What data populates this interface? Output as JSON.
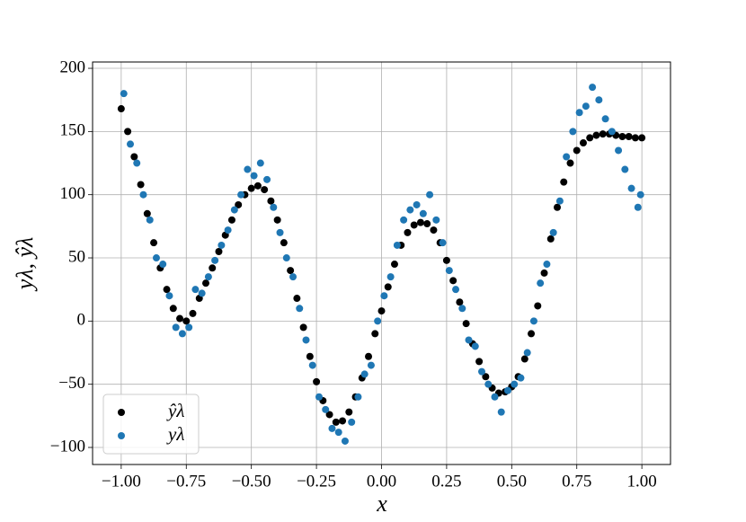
{
  "chart_data": {
    "type": "scatter",
    "x_label": "x",
    "y_label": "yλ, ŷλ",
    "xlim": [
      -1.11,
      1.11
    ],
    "ylim": [
      -113.5,
      205
    ],
    "xticks": [
      {
        "value": -1,
        "label": "−1.00"
      },
      {
        "value": -0.75,
        "label": "−0.75"
      },
      {
        "value": -0.5,
        "label": "−0.50"
      },
      {
        "value": -0.25,
        "label": "−0.25"
      },
      {
        "value": 0,
        "label": "0.00"
      },
      {
        "value": 0.25,
        "label": "0.25"
      },
      {
        "value": 0.5,
        "label": "0.50"
      },
      {
        "value": 0.75,
        "label": "0.75"
      },
      {
        "value": 1,
        "label": "1.00"
      }
    ],
    "yticks": [
      {
        "value": -100,
        "label": "−100"
      },
      {
        "value": -50,
        "label": "−50"
      },
      0,
      50,
      100,
      150,
      200
    ],
    "grid": true,
    "legend": "lower left",
    "series": [
      {
        "name": "ŷλ",
        "color": "#000000",
        "x": [
          -1,
          -0.975,
          -0.95,
          -0.925,
          -0.9,
          -0.875,
          -0.85,
          -0.825,
          -0.8,
          -0.775,
          -0.75,
          -0.725,
          -0.7,
          -0.675,
          -0.65,
          -0.625,
          -0.6,
          -0.575,
          -0.55,
          -0.525,
          -0.5,
          -0.475,
          -0.45,
          -0.425,
          -0.4,
          -0.375,
          -0.35,
          -0.325,
          -0.3,
          -0.275,
          -0.25,
          -0.225,
          -0.2,
          -0.175,
          -0.15,
          -0.125,
          -0.1,
          -0.075,
          -0.05,
          -0.025,
          0,
          0.025,
          0.05,
          0.075,
          0.1,
          0.125,
          0.15,
          0.175,
          0.2,
          0.225,
          0.25,
          0.275,
          0.3,
          0.325,
          0.35,
          0.375,
          0.4,
          0.425,
          0.45,
          0.475,
          0.5,
          0.525,
          0.55,
          0.575,
          0.6,
          0.625,
          0.65,
          0.675,
          0.7,
          0.725,
          0.75,
          0.775,
          0.8,
          0.825,
          0.85,
          0.875,
          0.9,
          0.925,
          0.95,
          0.975,
          1
        ],
        "values": [
          168,
          150,
          130,
          108,
          85,
          62,
          42,
          25,
          10,
          2,
          0,
          6,
          18,
          30,
          42,
          55,
          68,
          80,
          92,
          100,
          105,
          107,
          104,
          95,
          80,
          62,
          40,
          18,
          -5,
          -28,
          -48,
          -63,
          -74,
          -80,
          -79,
          -72,
          -60,
          -45,
          -28,
          -10,
          8,
          27,
          45,
          60,
          70,
          76,
          78,
          77,
          72,
          62,
          48,
          32,
          15,
          -2,
          -18,
          -32,
          -44,
          -53,
          -57,
          -56,
          -52,
          -44,
          -30,
          -10,
          12,
          38,
          65,
          90,
          110,
          125,
          135,
          141,
          145,
          147,
          148,
          148,
          147,
          146,
          146,
          145,
          145
        ]
      },
      {
        "name": "yλ",
        "color": "#1f77b4",
        "x": [
          -0.99,
          -0.965,
          -0.94,
          -0.915,
          -0.89,
          -0.865,
          -0.84,
          -0.815,
          -0.79,
          -0.765,
          -0.74,
          -0.715,
          -0.69,
          -0.665,
          -0.64,
          -0.615,
          -0.59,
          -0.565,
          -0.54,
          -0.515,
          -0.49,
          -0.465,
          -0.44,
          -0.415,
          -0.39,
          -0.365,
          -0.34,
          -0.315,
          -0.29,
          -0.265,
          -0.24,
          -0.215,
          -0.19,
          -0.165,
          -0.14,
          -0.115,
          -0.09,
          -0.065,
          -0.04,
          -0.015,
          0.01,
          0.035,
          0.06,
          0.085,
          0.11,
          0.135,
          0.16,
          0.185,
          0.21,
          0.235,
          0.26,
          0.285,
          0.31,
          0.335,
          0.36,
          0.385,
          0.41,
          0.435,
          0.46,
          0.485,
          0.51,
          0.535,
          0.56,
          0.585,
          0.61,
          0.635,
          0.66,
          0.685,
          0.71,
          0.735,
          0.76,
          0.785,
          0.81,
          0.835,
          0.86,
          0.885,
          0.91,
          0.935,
          0.96,
          0.985,
          0.995
        ],
        "values": [
          180,
          140,
          125,
          100,
          80,
          50,
          45,
          20,
          -5,
          -10,
          -5,
          25,
          22,
          35,
          48,
          60,
          72,
          88,
          100,
          120,
          115,
          125,
          112,
          90,
          70,
          50,
          35,
          10,
          -15,
          -35,
          -60,
          -70,
          -85,
          -88,
          -95,
          -80,
          -60,
          -42,
          -35,
          0,
          20,
          35,
          60,
          80,
          88,
          92,
          85,
          100,
          80,
          62,
          40,
          25,
          10,
          -15,
          -20,
          -40,
          -50,
          -60,
          -72,
          -55,
          -50,
          -45,
          -25,
          0,
          30,
          45,
          70,
          95,
          130,
          150,
          165,
          170,
          185,
          175,
          160,
          150,
          135,
          120,
          105,
          90,
          100
        ]
      }
    ]
  }
}
